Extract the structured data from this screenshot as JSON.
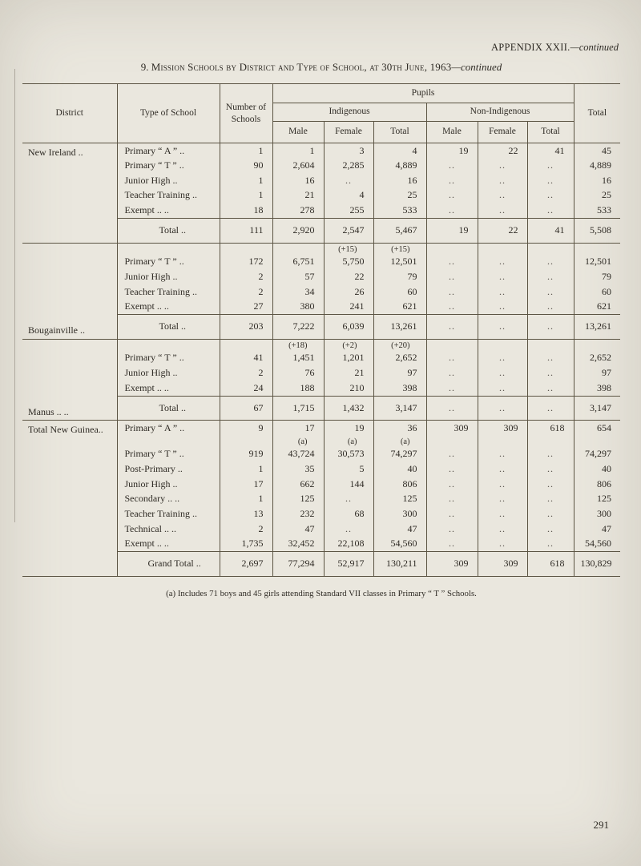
{
  "page": {
    "appendix_label": "APPENDIX XXII.",
    "appendix_continued": "—continued",
    "title_number": "9.",
    "title_main": "Mission Schools by District and Type of School, at 30th June, 1963",
    "title_continued": "—continued",
    "footnote": "(a) Includes 71 boys and 45 girls attending Standard VII classes in Primary “ T ” Schools.",
    "page_number": "291"
  },
  "colors": {
    "paper": "#eae7de",
    "ink": "#2f2b25",
    "line": "#5b5443"
  },
  "table": {
    "headers": {
      "district": "District",
      "type_of_school": "Type of School",
      "number_of_schools": "Number of Schools",
      "pupils": "Pupils",
      "indigenous": "Indigenous",
      "non_indigenous": "Non-Indigenous",
      "male": "Male",
      "female": "Female",
      "total": "Total",
      "total_col": "Total"
    },
    "groups": [
      {
        "district": "New Ireland ..",
        "rows": [
          {
            "type": "Primary “ A ” ..",
            "cells": [
              "1",
              "1",
              "3",
              "4",
              "19",
              "22",
              "41",
              "45"
            ]
          },
          {
            "type": "Primary “ T ” ..",
            "cells": [
              "90",
              "2,604",
              "2,285",
              "4,889",
              "..",
              "..",
              "..",
              "4,889"
            ]
          },
          {
            "type": "Junior High ..",
            "cells": [
              "1",
              "16",
              "..",
              "16",
              "..",
              "..",
              "..",
              "16"
            ]
          },
          {
            "type": "Teacher Training ..",
            "cells": [
              "1",
              "21",
              "4",
              "25",
              "..",
              "..",
              "..",
              "25"
            ]
          },
          {
            "type": "Exempt .. ..",
            "cells": [
              "18",
              "278",
              "255",
              "533",
              "..",
              "..",
              "..",
              "533"
            ]
          }
        ],
        "total_label": "Total ..",
        "total_cells": [
          "111",
          "2,920",
          "2,547",
          "5,467",
          "19",
          "22",
          "41",
          "5,508"
        ]
      },
      {
        "district": "Bougainville ..",
        "rows": [
          {
            "type": "Primary “ T ” ..",
            "cells": [
              "172",
              "6,751",
              "(+15)\n5,750",
              "(+15)\n12,501",
              "..",
              "..",
              "..",
              "12,501"
            ]
          },
          {
            "type": "Junior High ..",
            "cells": [
              "2",
              "57",
              "22",
              "79",
              "..",
              "..",
              "..",
              "79"
            ]
          },
          {
            "type": "Teacher Training ..",
            "cells": [
              "2",
              "34",
              "26",
              "60",
              "..",
              "..",
              "..",
              "60"
            ]
          },
          {
            "type": "Exempt .. ..",
            "cells": [
              "27",
              "380",
              "241",
              "621",
              "..",
              "..",
              "..",
              "621"
            ]
          }
        ],
        "total_label": "Total ..",
        "total_cells": [
          "203",
          "7,222",
          "6,039",
          "13,261",
          "..",
          "..",
          "..",
          "13,261"
        ]
      },
      {
        "district": "Manus .. ..",
        "rows": [
          {
            "type": "Primary “ T ” ..",
            "cells": [
              "41",
              "(+18)\n1,451",
              "(+2)\n1,201",
              "(+20)\n2,652",
              "..",
              "..",
              "..",
              "2,652"
            ]
          },
          {
            "type": "Junior High ..",
            "cells": [
              "2",
              "76",
              "21",
              "97",
              "..",
              "..",
              "..",
              "97"
            ]
          },
          {
            "type": "Exempt .. ..",
            "cells": [
              "24",
              "188",
              "210",
              "398",
              "..",
              "..",
              "..",
              "398"
            ]
          }
        ],
        "total_label": "Total ..",
        "total_cells": [
          "67",
          "1,715",
          "1,432",
          "3,147",
          "..",
          "..",
          "..",
          "3,147"
        ]
      },
      {
        "district": "Total New Guinea..",
        "rows": [
          {
            "type": "Primary “ A ” ..",
            "cells": [
              "9",
              "17",
              "19",
              "36",
              "309",
              "309",
              "618",
              "654"
            ]
          },
          {
            "type": "Primary “ T ” ..",
            "cells": [
              "919",
              "(a)\n43,724",
              "(a)\n30,573",
              "(a)\n74,297",
              "..",
              "..",
              "..",
              "74,297"
            ]
          },
          {
            "type": "Post-Primary ..",
            "cells": [
              "1",
              "35",
              "5",
              "40",
              "..",
              "..",
              "..",
              "40"
            ]
          },
          {
            "type": "Junior High ..",
            "cells": [
              "17",
              "662",
              "144",
              "806",
              "..",
              "..",
              "..",
              "806"
            ]
          },
          {
            "type": "Secondary .. ..",
            "cells": [
              "1",
              "125",
              "..",
              "125",
              "..",
              "..",
              "..",
              "125"
            ]
          },
          {
            "type": "Teacher Training ..",
            "cells": [
              "13",
              "232",
              "68",
              "300",
              "..",
              "..",
              "..",
              "300"
            ]
          },
          {
            "type": "Technical .. ..",
            "cells": [
              "2",
              "47",
              "..",
              "47",
              "..",
              "..",
              "..",
              "47"
            ]
          },
          {
            "type": "Exempt .. ..",
            "cells": [
              "1,735",
              "32,452",
              "22,108",
              "54,560",
              "..",
              "..",
              "..",
              "54,560"
            ]
          }
        ],
        "total_label": "Grand Total ..",
        "total_cells": [
          "2,697",
          "77,294",
          "52,917",
          "130,211",
          "309",
          "309",
          "618",
          "130,829"
        ]
      }
    ]
  }
}
